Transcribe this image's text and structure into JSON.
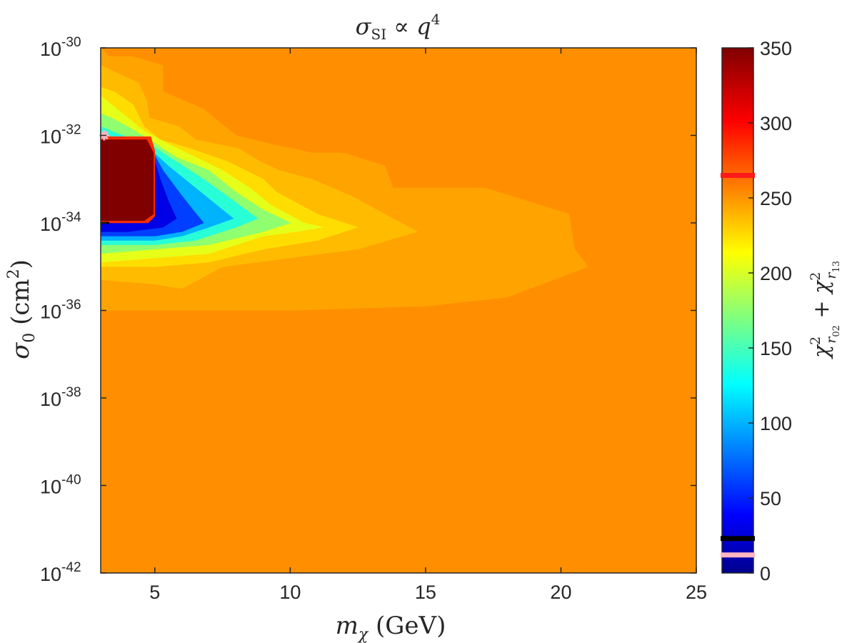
{
  "chart_data": {
    "type": "heatmap",
    "title": "σ_SI ∝ q⁴",
    "title_parts": {
      "sigma": "σ",
      "sub": "SI",
      "rel": " ∝ ",
      "q": "q",
      "sup": "4"
    },
    "xlabel": "m_χ (GeV)",
    "xlabel_parts": {
      "m": "m",
      "sub": "χ",
      "rest": " (GeV)"
    },
    "ylabel": "σ_0 (cm²)",
    "ylabel_parts": {
      "sigma": "σ",
      "sub": "0",
      "open": " (cm",
      "sup": "2",
      "close": ")"
    },
    "colorbar_label": "χ²_r02 + χ²_r13",
    "colorbar_label_parts": {
      "chi1": "χ",
      "sup1": "2",
      "sub1": "r",
      "subsub1": "02",
      "plus": " + ",
      "chi2": "χ",
      "sup2": "2",
      "sub2": "r",
      "subsub2": "13"
    },
    "xlim": [
      3,
      25
    ],
    "ylim_log10": [
      -42,
      -30
    ],
    "y_scale": "log",
    "x_ticks": [
      {
        "value": 5,
        "label": "5"
      },
      {
        "value": 10,
        "label": "10"
      },
      {
        "value": 15,
        "label": "15"
      },
      {
        "value": 20,
        "label": "20"
      },
      {
        "value": 25,
        "label": "25"
      }
    ],
    "y_ticks": [
      {
        "exp": -30,
        "base": "10",
        "sup": "-30"
      },
      {
        "exp": -32,
        "base": "10",
        "sup": "-32"
      },
      {
        "exp": -34,
        "base": "10",
        "sup": "-34"
      },
      {
        "exp": -36,
        "base": "10",
        "sup": "-36"
      },
      {
        "exp": -38,
        "base": "10",
        "sup": "-38"
      },
      {
        "exp": -40,
        "base": "10",
        "sup": "-40"
      },
      {
        "exp": -42,
        "base": "10",
        "sup": "-42"
      }
    ],
    "colorbar": {
      "colormap": "jet",
      "range": [
        0,
        350
      ],
      "ticks": [
        {
          "value": 0,
          "label": "0"
        },
        {
          "value": 50,
          "label": "50"
        },
        {
          "value": 100,
          "label": "100"
        },
        {
          "value": 150,
          "label": "150"
        },
        {
          "value": 200,
          "label": "200"
        },
        {
          "value": 250,
          "label": "250"
        },
        {
          "value": 300,
          "label": "300"
        },
        {
          "value": 350,
          "label": "350"
        }
      ],
      "markers": [
        {
          "value": 265,
          "color": "#ff1a1a"
        },
        {
          "value": 23,
          "color": "#000000"
        },
        {
          "value": 12,
          "color": "#ffb6c1"
        }
      ]
    },
    "background_value": 252,
    "contour_regions": [
      {
        "value": 245,
        "points": [
          [
            3,
            -30
          ],
          [
            3.3,
            -30.2
          ],
          [
            4.2,
            -30.2
          ],
          [
            5.3,
            -30.4
          ],
          [
            5.3,
            -31.0
          ],
          [
            6.8,
            -31.4
          ],
          [
            8.0,
            -32.0
          ],
          [
            9.3,
            -32.2
          ],
          [
            10.1,
            -32.3
          ],
          [
            10.8,
            -32.4
          ],
          [
            12.0,
            -32.4
          ],
          [
            13.5,
            -32.7
          ],
          [
            13.8,
            -33.2
          ],
          [
            17.2,
            -33.2
          ],
          [
            20.3,
            -33.8
          ],
          [
            20.5,
            -34.6
          ],
          [
            21.0,
            -35.0
          ],
          [
            18.0,
            -35.7
          ],
          [
            15.0,
            -35.9
          ],
          [
            10.0,
            -36.0
          ],
          [
            7.0,
            -36.0
          ],
          [
            5.0,
            -36.0
          ],
          [
            3.0,
            -36.0
          ]
        ]
      },
      {
        "value": 237,
        "points": [
          [
            3,
            -30.4
          ],
          [
            3.7,
            -30.6
          ],
          [
            4.4,
            -30.8
          ],
          [
            4.7,
            -31.2
          ],
          [
            4.8,
            -31.6
          ],
          [
            5.9,
            -31.8
          ],
          [
            6.5,
            -32.1
          ],
          [
            8.1,
            -32.3
          ],
          [
            8.9,
            -32.6
          ],
          [
            9.6,
            -32.8
          ],
          [
            10.8,
            -33.0
          ],
          [
            12.3,
            -33.4
          ],
          [
            14.7,
            -34.2
          ],
          [
            12.5,
            -34.6
          ],
          [
            10.0,
            -34.8
          ],
          [
            7.5,
            -35.0
          ],
          [
            6.0,
            -35.5
          ],
          [
            5.0,
            -35.4
          ],
          [
            3.0,
            -35.3
          ]
        ]
      },
      {
        "value": 225,
        "points": [
          [
            3,
            -30.9
          ],
          [
            3.5,
            -31.0
          ],
          [
            4.2,
            -31.3
          ],
          [
            4.6,
            -31.8
          ],
          [
            5.2,
            -32.1
          ],
          [
            6.3,
            -32.3
          ],
          [
            7.7,
            -32.6
          ],
          [
            9.0,
            -33.0
          ],
          [
            9.5,
            -33.3
          ],
          [
            11.0,
            -33.8
          ],
          [
            12.5,
            -34.1
          ],
          [
            11.0,
            -34.4
          ],
          [
            9.0,
            -34.6
          ],
          [
            7.0,
            -34.9
          ],
          [
            5.0,
            -35.0
          ],
          [
            3.0,
            -35.0
          ]
        ]
      },
      {
        "value": 205,
        "points": [
          [
            3,
            -31.1
          ],
          [
            3.4,
            -31.3
          ],
          [
            4.0,
            -31.6
          ],
          [
            4.6,
            -31.9
          ],
          [
            5.5,
            -32.2
          ],
          [
            6.5,
            -32.5
          ],
          [
            7.5,
            -32.8
          ],
          [
            8.5,
            -33.2
          ],
          [
            9.3,
            -33.6
          ],
          [
            10.5,
            -34.0
          ],
          [
            11.2,
            -34.1
          ],
          [
            10.2,
            -34.2
          ],
          [
            9.0,
            -34.3
          ],
          [
            7.0,
            -34.7
          ],
          [
            5.0,
            -34.8
          ],
          [
            3.0,
            -34.9
          ]
        ]
      },
      {
        "value": 175,
        "points": [
          [
            3,
            -31.5
          ],
          [
            3.4,
            -31.6
          ],
          [
            4.0,
            -31.8
          ],
          [
            4.8,
            -32.1
          ],
          [
            5.8,
            -32.5
          ],
          [
            7.0,
            -32.8
          ],
          [
            8.0,
            -33.3
          ],
          [
            9.0,
            -33.7
          ],
          [
            10.0,
            -34.0
          ],
          [
            9.0,
            -34.2
          ],
          [
            7.0,
            -34.5
          ],
          [
            5.0,
            -34.6
          ],
          [
            3.0,
            -34.7
          ]
        ]
      },
      {
        "value": 140,
        "points": [
          [
            3,
            -31.8
          ],
          [
            3.8,
            -32.0
          ],
          [
            4.8,
            -32.2
          ],
          [
            5.8,
            -32.6
          ],
          [
            6.8,
            -33.0
          ],
          [
            7.7,
            -33.4
          ],
          [
            8.8,
            -33.9
          ],
          [
            8.0,
            -34.1
          ],
          [
            6.5,
            -34.4
          ],
          [
            5.0,
            -34.5
          ],
          [
            3.0,
            -34.5
          ]
        ]
      },
      {
        "value": 100,
        "points": [
          [
            3,
            -32.0
          ],
          [
            4.8,
            -32.3
          ],
          [
            5.5,
            -32.7
          ],
          [
            6.3,
            -33.1
          ],
          [
            7.1,
            -33.5
          ],
          [
            7.9,
            -33.9
          ],
          [
            7.0,
            -34.1
          ],
          [
            6.0,
            -34.3
          ],
          [
            5.0,
            -34.4
          ],
          [
            3.0,
            -34.4
          ]
        ]
      },
      {
        "value": 60,
        "points": [
          [
            3,
            -32.1
          ],
          [
            4.9,
            -32.35
          ],
          [
            5.3,
            -32.8
          ],
          [
            5.9,
            -33.3
          ],
          [
            6.4,
            -33.7
          ],
          [
            6.8,
            -34.0
          ],
          [
            6.0,
            -34.2
          ],
          [
            5.0,
            -34.3
          ],
          [
            3.0,
            -34.3
          ]
        ]
      },
      {
        "value": 30,
        "points": [
          [
            3,
            -32.3
          ],
          [
            4.9,
            -32.4
          ],
          [
            5.2,
            -33.0
          ],
          [
            5.5,
            -33.5
          ],
          [
            5.8,
            -33.9
          ],
          [
            5.3,
            -34.1
          ],
          [
            4.0,
            -34.2
          ],
          [
            3.0,
            -34.2
          ]
        ]
      },
      {
        "value": 285,
        "points": [
          [
            3.0,
            -32.03
          ],
          [
            4.85,
            -32.03
          ],
          [
            5.0,
            -32.35
          ],
          [
            5.0,
            -33.85
          ],
          [
            4.75,
            -34.0
          ],
          [
            3.0,
            -34.0
          ]
        ]
      },
      {
        "value": 350,
        "points": [
          [
            3.0,
            -32.1
          ],
          [
            4.7,
            -32.1
          ],
          [
            4.95,
            -32.4
          ],
          [
            4.95,
            -33.8
          ],
          [
            4.6,
            -33.95
          ],
          [
            3.0,
            -33.95
          ]
        ]
      }
    ],
    "point_markers": [
      {
        "x": 3.1,
        "exp": -32.0,
        "color": "#ffb6c1",
        "shape": "star"
      },
      {
        "x": 3.1,
        "exp": -34.0,
        "color": "#000000",
        "shape": "dash"
      }
    ]
  }
}
